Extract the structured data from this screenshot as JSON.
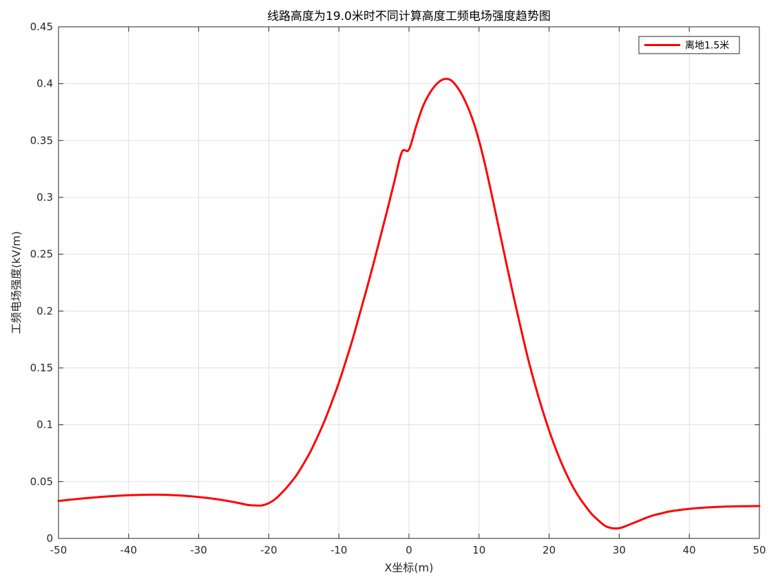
{
  "chart_data": {
    "type": "line",
    "title": "线路高度为19.0米时不同计算高度工频电场强度趋势图",
    "xlabel": "X坐标(m)",
    "ylabel": "工频电场强度(kV/m)",
    "xlim": [
      -50,
      50
    ],
    "ylim": [
      0,
      0.45
    ],
    "xticks": [
      -50,
      -40,
      -30,
      -20,
      -10,
      0,
      10,
      20,
      30,
      40,
      50
    ],
    "yticks": [
      0,
      0.05,
      0.1,
      0.15,
      0.2,
      0.25,
      0.3,
      0.35,
      0.4,
      0.45
    ],
    "x_tick_labels": [
      "-50",
      "-40",
      "-30",
      "-20",
      "-10",
      "0",
      "10",
      "20",
      "30",
      "40",
      "50"
    ],
    "y_tick_labels": [
      "0",
      "0.05",
      "0.1",
      "0.15",
      "0.2",
      "0.25",
      "0.3",
      "0.35",
      "0.4",
      "0.45"
    ],
    "grid": true,
    "legend_position": "top-right",
    "series": [
      {
        "name": "离地1.5米",
        "color": "#ff0000",
        "x": [
          -50,
          -45,
          -40,
          -36,
          -32,
          -28,
          -25,
          -23,
          -22,
          -21,
          -20,
          -19,
          -18,
          -17,
          -16,
          -15,
          -14,
          -13,
          -12,
          -11,
          -10,
          -9,
          -8,
          -7,
          -6,
          -5,
          -4,
          -3,
          -2,
          -1,
          0,
          1,
          2,
          3,
          4,
          5,
          6,
          7,
          8,
          9,
          10,
          11,
          12,
          13,
          14,
          15,
          16,
          17,
          18,
          19,
          20,
          21,
          22,
          23,
          24,
          25,
          26,
          27,
          28,
          29,
          30,
          31,
          32,
          33,
          34,
          35,
          36,
          37,
          38,
          40,
          42,
          45,
          50
        ],
        "y": [
          0.033,
          0.036,
          0.038,
          0.0385,
          0.0375,
          0.035,
          0.032,
          0.0295,
          0.029,
          0.029,
          0.031,
          0.035,
          0.041,
          0.048,
          0.056,
          0.066,
          0.077,
          0.09,
          0.104,
          0.12,
          0.137,
          0.156,
          0.176,
          0.198,
          0.22,
          0.243,
          0.267,
          0.291,
          0.316,
          0.34,
          0.342,
          0.362,
          0.38,
          0.392,
          0.4,
          0.404,
          0.403,
          0.396,
          0.385,
          0.37,
          0.35,
          0.325,
          0.297,
          0.268,
          0.239,
          0.211,
          0.184,
          0.158,
          0.135,
          0.114,
          0.095,
          0.078,
          0.063,
          0.05,
          0.039,
          0.03,
          0.022,
          0.016,
          0.011,
          0.009,
          0.009,
          0.011,
          0.0135,
          0.016,
          0.0185,
          0.0205,
          0.022,
          0.0235,
          0.0245,
          0.026,
          0.027,
          0.028,
          0.0285
        ]
      }
    ]
  }
}
